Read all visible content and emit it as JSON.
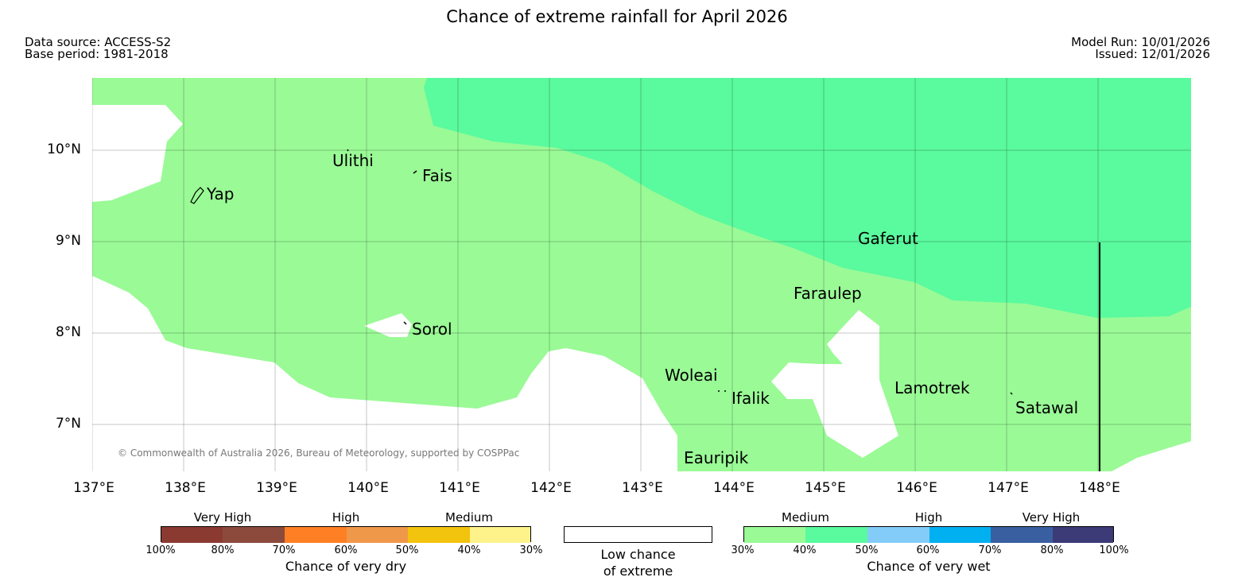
{
  "title": "Chance of extreme rainfall for April 2026",
  "meta": {
    "data_source": "Data source: ACCESS-S2",
    "base_period": "Base period: 1981-2018",
    "model_run": "Model Run: 10/01/2026",
    "issued": "Issued: 12/01/2026"
  },
  "map": {
    "lat_labels": [
      "10°N",
      "9°N",
      "8°N",
      "7°N"
    ],
    "lon_labels": [
      "137°E",
      "138°E",
      "139°E",
      "140°E",
      "141°E",
      "142°E",
      "143°E",
      "144°E",
      "145°E",
      "146°E",
      "147°E",
      "148°E"
    ],
    "places": [
      "Ulithi",
      "Fais",
      "Yap",
      "Gaferut",
      "Faraulep",
      "Sorol",
      "Woleai",
      "Ifalik",
      "Lamotrek",
      "Satawal",
      "Eauripik"
    ],
    "colors": {
      "medium_wet": "#9afa96",
      "high_wet": "#5afa9e",
      "low": "#ffffff"
    },
    "copyright": "© Commonwealth of Australia 2026, Bureau of Meteorology, supported by COSPPac"
  },
  "legend": {
    "dry": {
      "heads": [
        "Very High",
        "High",
        "Medium"
      ],
      "ticks": [
        "100%",
        "80%",
        "70%",
        "60%",
        "50%",
        "40%",
        "30%"
      ],
      "colors": [
        "#8b3a32",
        "#8c4a3c",
        "#ff7f24",
        "#f0984a",
        "#f2c40e",
        "#fef28a"
      ],
      "caption": "Chance of very dry"
    },
    "low": {
      "caption_line1": "Low chance",
      "caption_line2": "of extreme"
    },
    "wet": {
      "heads": [
        "Medium",
        "High",
        "Very High"
      ],
      "ticks": [
        "30%",
        "40%",
        "50%",
        "60%",
        "70%",
        "80%",
        "100%"
      ],
      "colors": [
        "#9afa96",
        "#5afa9e",
        "#84ccf8",
        "#00b0f0",
        "#3a5fa0",
        "#3d3a78"
      ],
      "caption": "Chance of very wet"
    }
  }
}
